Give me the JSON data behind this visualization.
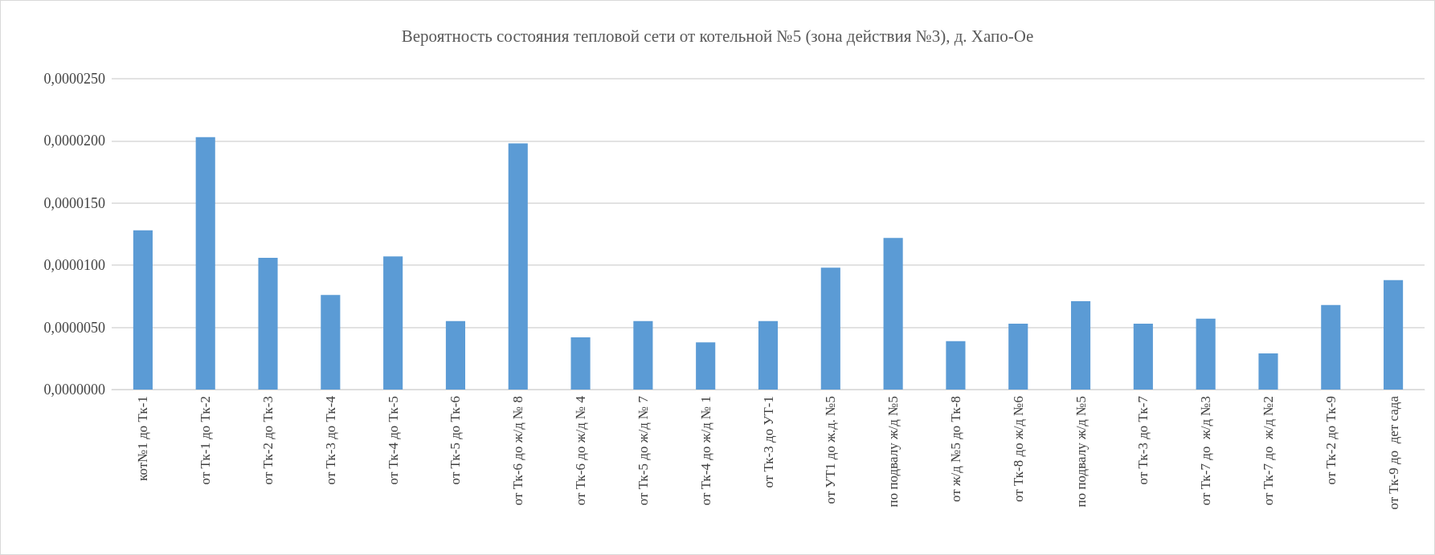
{
  "chart_data": {
    "type": "bar",
    "title": "Вероятность состояния тепловой сети от котельной №5 (зона действия №3), д. Хапо-Ое",
    "categories": [
      "кот№1 до Тк-1",
      "от Тк-1 до Тк-2",
      "от Тк-2 до Тк-3",
      "от Тк-3 до Тк-4",
      "от Тк-4 до Тк-5",
      "от Тк-5 до Тк-6",
      "от Тк-6 до ж/д № 8",
      "от Тк-6 до ж/д № 4",
      "от Тк-5 до ж/д № 7",
      "от Тк-4 до ж/д № 1",
      "от Тк-3 до УТ-1",
      "от УТ1 до ж.д. №5",
      "по подвалу ж/д №5",
      "от ж/д №5 до Тк-8",
      "от Тк-8 до ж/д №6",
      "по подвалу ж/д №5",
      "от Тк-3 до Тк-7",
      "от Тк-7 до  ж/д №3",
      "от Тк-7 до  ж/д №2",
      "от Тк-2 до Тк-9",
      "от Тк-9 до  дет сада"
    ],
    "values": [
      1.28e-05,
      2.03e-05,
      1.06e-05,
      7.6e-06,
      1.07e-05,
      5.5e-06,
      1.98e-05,
      4.2e-06,
      5.5e-06,
      3.8e-06,
      5.5e-06,
      9.8e-06,
      1.22e-05,
      3.9e-06,
      5.3e-06,
      7.1e-06,
      5.3e-06,
      5.7e-06,
      2.9e-06,
      6.8e-06,
      8.8e-06
    ],
    "color": "#5b9bd5",
    "ylim": [
      0,
      2.5e-05
    ],
    "yticks": [
      {
        "value": 0,
        "label": "0,0000000"
      },
      {
        "value": 5e-06,
        "label": "0,0000050"
      },
      {
        "value": 1e-05,
        "label": "0,0000100"
      },
      {
        "value": 1.5e-05,
        "label": "0,0000150"
      },
      {
        "value": 2e-05,
        "label": "0,0000200"
      },
      {
        "value": 2.5e-05,
        "label": "0,0000250"
      }
    ],
    "grid": "y"
  }
}
